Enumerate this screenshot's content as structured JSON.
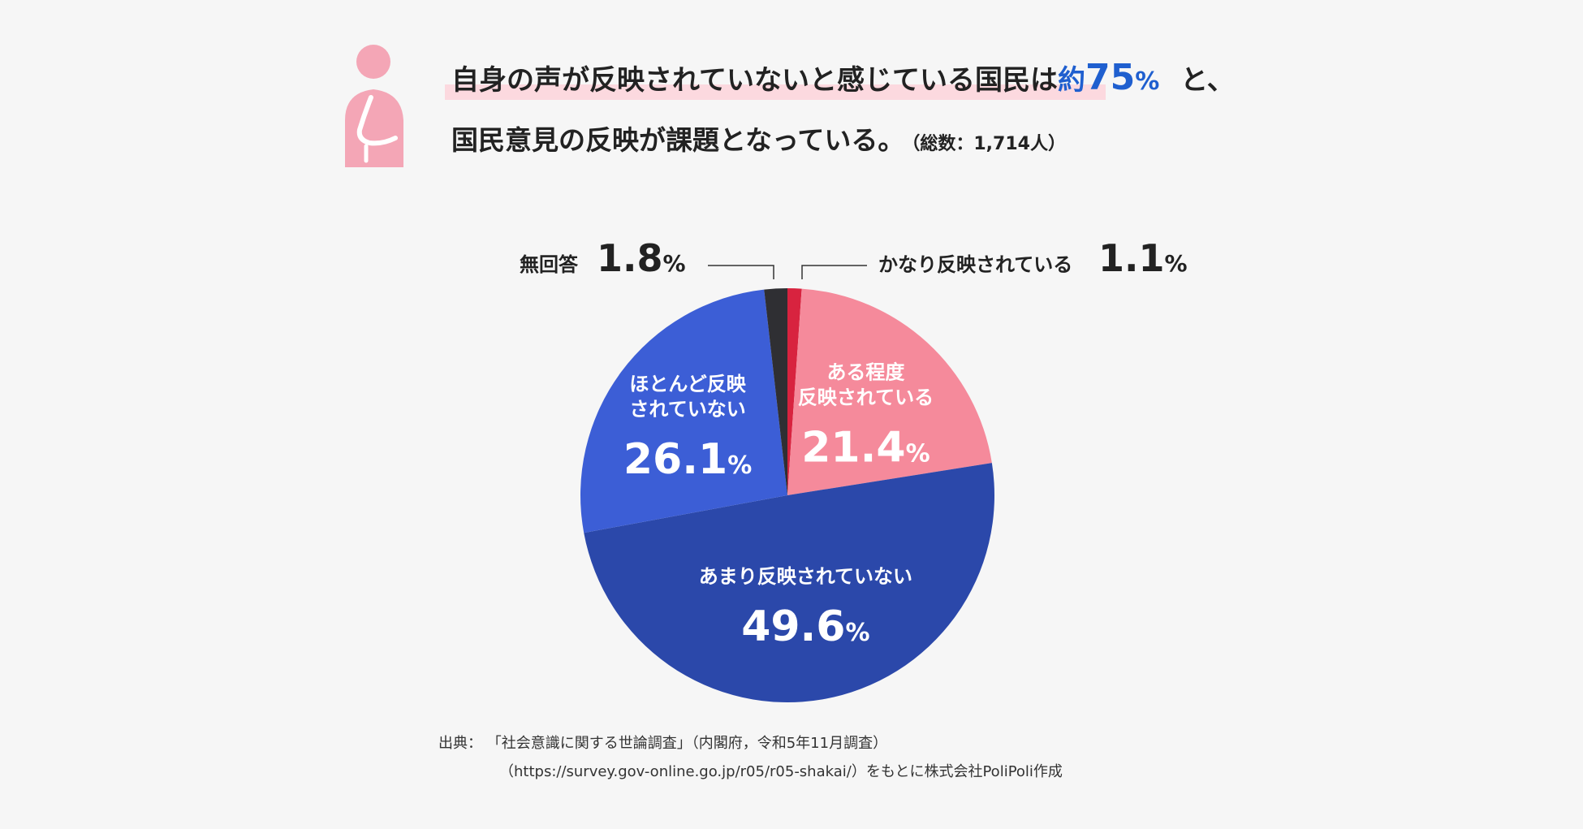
{
  "headline": {
    "line1_text": "自身の声が反映されていないと感じている国民は",
    "line1_accent_prefix": "約",
    "line1_accent_value": "75",
    "line1_accent_unit": "%",
    "line1_suffix": "と、",
    "line2_text": "国民意見の反映が課題となっている。",
    "line2_total": "（総数：1,714人）"
  },
  "icons": {
    "person": "thinking-person-icon"
  },
  "colors": {
    "background": "#f6f6f6",
    "accent_blue": "#1f5fcf",
    "marker_pink": "#fcd9df",
    "person_pink": "#f4a6b6"
  },
  "chart_data": {
    "type": "pie",
    "start": "12 o'clock, clockwise",
    "slices": [
      {
        "label": "かなり反映されている",
        "value": 1.1,
        "color": "#d8233f",
        "label_position": "outside-top-right"
      },
      {
        "label": "ある程度\n反映されている",
        "value": 21.4,
        "color": "#f58a9b",
        "label_position": "inside"
      },
      {
        "label": "あまり反映されていない",
        "value": 49.6,
        "color": "#2b48aa",
        "label_position": "inside"
      },
      {
        "label": "ほとんど反映\nされていない",
        "value": 26.1,
        "color": "#3c5ed6",
        "label_position": "inside"
      },
      {
        "label": "無回答",
        "value": 1.8,
        "color": "#2f2f33",
        "label_position": "outside-top-left"
      }
    ],
    "unit": "%"
  },
  "source": {
    "prefix": "出典：",
    "line1": "「社会意識に関する世論調査」（内閣府，令和5年11月調査）",
    "line2": "（https://survey.gov-online.go.jp/r05/r05-shakai/）をもとに株式会社PoliPoli作成"
  }
}
